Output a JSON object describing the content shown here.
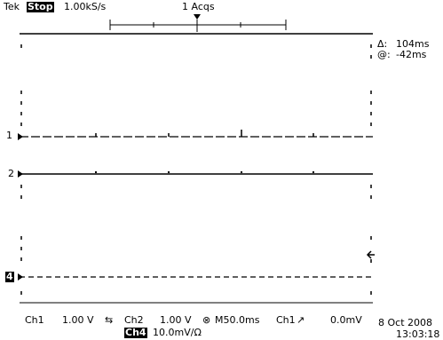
{
  "header": {
    "brand": "Tek",
    "run_state": "Stop",
    "sample_rate": "1.00kS/s",
    "acquisitions": "1 Acqs"
  },
  "cursor_readout": {
    "delta_symbol": "Δ:",
    "delta_value": "104ms",
    "at_symbol": "@:",
    "at_value": "-42ms"
  },
  "channels": {
    "ch1_marker": "1",
    "ch2_marker": "2",
    "ch4_marker": "4"
  },
  "footer": {
    "ch1_label": "Ch1",
    "ch1_scale": "1.00 V",
    "ch2_label": "Ch2",
    "ch2_scale": "1.00 V",
    "timebase": "M50.0ms",
    "trigger_source": "Ch1",
    "trigger_level": "0.0mV",
    "ch4_label": "Ch4",
    "ch4_scale": "10.0mV/Ω",
    "date": "8 Oct 2008",
    "time": "13:03:18"
  },
  "colors": {
    "foreground": "#000000",
    "background": "#ffffff"
  }
}
